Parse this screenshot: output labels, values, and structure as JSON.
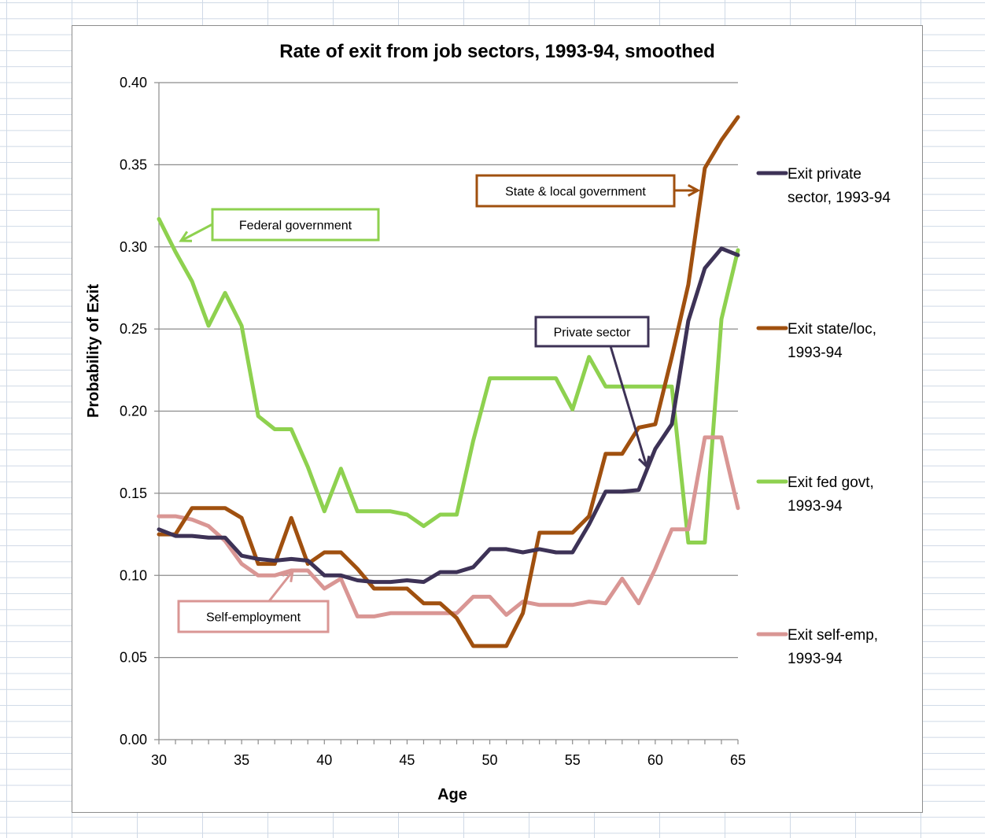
{
  "chart_data": {
    "type": "line",
    "title": "Rate of exit from job sectors, 1993-94, smoothed",
    "xlabel": "Age",
    "ylabel": "Probability of Exit",
    "xlim": [
      30,
      65
    ],
    "ylim": [
      0,
      0.4
    ],
    "x_ticks": [
      "30",
      "35",
      "40",
      "45",
      "50",
      "55",
      "60",
      "65"
    ],
    "y_ticks": [
      "0.00",
      "0.05",
      "0.10",
      "0.15",
      "0.20",
      "0.25",
      "0.30",
      "0.35",
      "0.40"
    ],
    "grid": "horizontal",
    "legend_position": "right",
    "x": [
      30,
      31,
      32,
      33,
      34,
      35,
      36,
      37,
      38,
      39,
      40,
      41,
      42,
      43,
      44,
      45,
      46,
      47,
      48,
      49,
      50,
      51,
      52,
      53,
      54,
      55,
      56,
      57,
      58,
      59,
      60,
      61,
      62,
      63,
      64,
      65
    ],
    "series": [
      {
        "name": "Exit private sector, 1993-94",
        "legend_lines": [
          "Exit private",
          "sector, 1993-94"
        ],
        "color": "#3d3256",
        "values": [
          0.128,
          0.124,
          0.124,
          0.123,
          0.123,
          0.112,
          0.11,
          0.109,
          0.11,
          0.109,
          0.1,
          0.1,
          0.097,
          0.096,
          0.096,
          0.097,
          0.096,
          0.102,
          0.102,
          0.105,
          0.116,
          0.116,
          0.114,
          0.116,
          0.114,
          0.114,
          0.131,
          0.151,
          0.151,
          0.152,
          0.177,
          0.192,
          0.255,
          0.287,
          0.299,
          0.295
        ]
      },
      {
        "name": "Exit state/loc, 1993-94",
        "legend_lines": [
          "Exit state/loc,",
          "1993-94"
        ],
        "color": "#a0500f",
        "values": [
          0.125,
          0.125,
          0.141,
          0.141,
          0.141,
          0.135,
          0.107,
          0.107,
          0.135,
          0.107,
          0.114,
          0.114,
          0.104,
          0.092,
          0.092,
          0.092,
          0.083,
          0.083,
          0.074,
          0.057,
          0.057,
          0.057,
          0.077,
          0.126,
          0.126,
          0.126,
          0.136,
          0.174,
          0.174,
          0.19,
          0.192,
          0.233,
          0.277,
          0.348,
          0.365,
          0.379
        ]
      },
      {
        "name": "Exit fed govt, 1993-94",
        "legend_lines": [
          "Exit fed govt,",
          "1993-94"
        ],
        "color": "#8ed14f",
        "values": [
          0.317,
          0.297,
          0.279,
          0.252,
          0.272,
          0.252,
          0.197,
          0.189,
          0.189,
          0.166,
          0.139,
          0.165,
          0.139,
          0.139,
          0.139,
          0.137,
          0.13,
          0.137,
          0.137,
          0.182,
          0.22,
          0.22,
          0.22,
          0.22,
          0.22,
          0.201,
          0.233,
          0.215,
          0.215,
          0.215,
          0.215,
          0.215,
          0.12,
          0.12,
          0.256,
          0.298
        ]
      },
      {
        "name": "Exit self-emp, 1993-94",
        "legend_lines": [
          "Exit self-emp,",
          "1993-94"
        ],
        "color": "#d99694",
        "values": [
          0.136,
          0.136,
          0.134,
          0.13,
          0.121,
          0.107,
          0.1,
          0.1,
          0.103,
          0.103,
          0.092,
          0.098,
          0.075,
          0.075,
          0.077,
          0.077,
          0.077,
          0.077,
          0.077,
          0.087,
          0.087,
          0.076,
          0.084,
          0.082,
          0.082,
          0.082,
          0.084,
          0.083,
          0.098,
          0.083,
          0.104,
          0.128,
          0.128,
          0.184,
          0.184,
          0.141
        ]
      }
    ],
    "annotations": [
      {
        "text": "Federal government",
        "series": 2,
        "color": "#8ed14f"
      },
      {
        "text": "State & local government",
        "series": 1,
        "color": "#a0500f"
      },
      {
        "text": "Private sector",
        "series": 0,
        "color": "#3d3256"
      },
      {
        "text": "Self-employment",
        "series": 3,
        "color": "#d99694"
      }
    ]
  }
}
